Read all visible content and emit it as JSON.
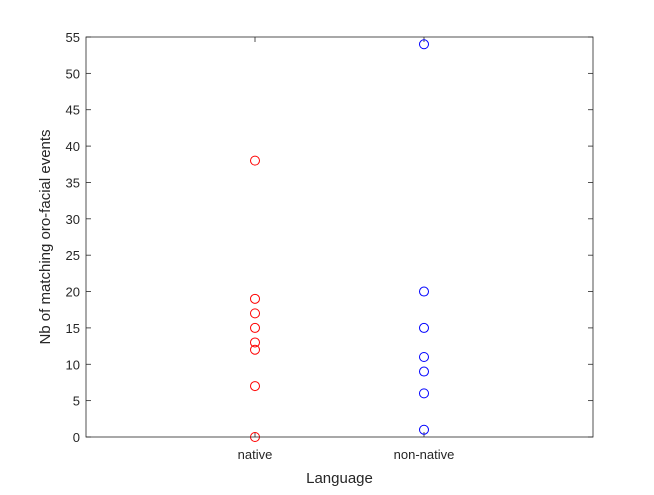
{
  "chart_data": {
    "type": "scatter",
    "categories": [
      "native",
      "non-native"
    ],
    "xlabel": "Language",
    "ylabel": "Nb of matching oro-facial events",
    "ylim": [
      0,
      55
    ],
    "yticks": [
      0,
      5,
      10,
      15,
      20,
      25,
      30,
      35,
      40,
      45,
      50,
      55
    ],
    "grid": false,
    "box": true,
    "series": [
      {
        "category": "native",
        "color": "#ff0000",
        "marker": "circle-open",
        "values": [
          38,
          19,
          17,
          15,
          13,
          12,
          7,
          0
        ]
      },
      {
        "category": "non-native",
        "color": "#0000ff",
        "marker": "circle-open",
        "values": [
          54,
          20,
          15,
          11,
          9,
          6,
          1
        ]
      }
    ]
  }
}
